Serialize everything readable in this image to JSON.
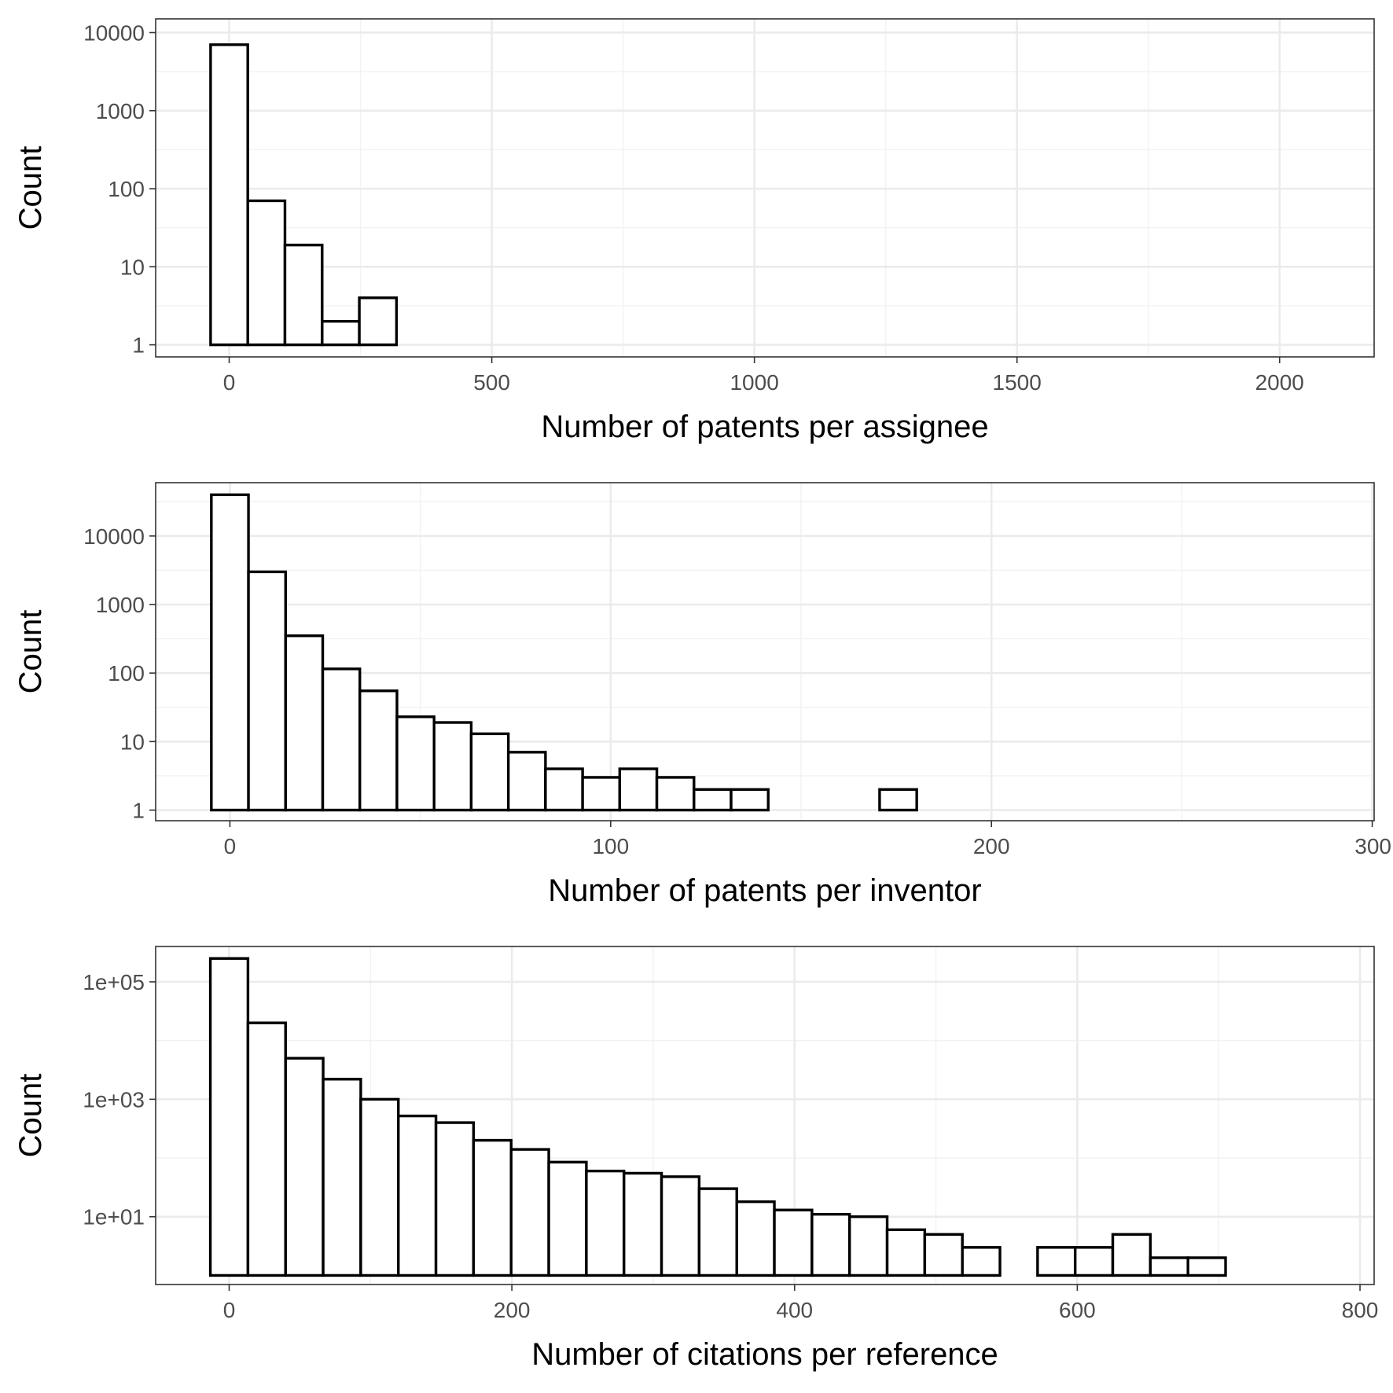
{
  "chart_data": [
    {
      "type": "bar",
      "y_scale": "log10",
      "grid": true,
      "xlabel": "Number of patents per assignee",
      "ylabel": "Count",
      "xlim": [
        -140,
        2180
      ],
      "ylim": [
        0.7,
        15000
      ],
      "x_ticks": [
        0,
        500,
        1000,
        1500,
        2000
      ],
      "x_tick_labels": [
        "0",
        "500",
        "1000",
        "1500",
        "2000"
      ],
      "y_ticks": [
        1,
        10,
        100,
        1000,
        10000
      ],
      "y_tick_labels": [
        "1",
        "10",
        "100",
        "1000",
        "10000"
      ],
      "bin_width": 70.8,
      "bins": [
        {
          "x": 0,
          "count": 7000
        },
        {
          "x": 70.8,
          "count": 70
        },
        {
          "x": 141.6,
          "count": 19
        },
        {
          "x": 212.4,
          "count": 2
        },
        {
          "x": 283.2,
          "count": 4
        },
        {
          "x": 354,
          "count": 1
        },
        {
          "x": 424.8,
          "count": 1
        },
        {
          "x": 920.4,
          "count": 1
        },
        {
          "x": 1628.4,
          "count": 1
        },
        {
          "x": 2053.2,
          "count": 1
        }
      ]
    },
    {
      "type": "bar",
      "y_scale": "log10",
      "grid": true,
      "xlabel": "Number of patents per inventor",
      "ylabel": "Count",
      "xlim": [
        -19.5,
        300.5
      ],
      "ylim": [
        0.7,
        60000
      ],
      "x_ticks": [
        0,
        100,
        200,
        300
      ],
      "x_tick_labels": [
        "0",
        "100",
        "200",
        "300"
      ],
      "y_ticks": [
        1,
        10,
        100,
        1000,
        10000
      ],
      "y_tick_labels": [
        "1",
        "10",
        "100",
        "1000",
        "10000"
      ],
      "bin_width": 9.75,
      "bins": [
        {
          "x": 0,
          "count": 40000
        },
        {
          "x": 9.75,
          "count": 3000
        },
        {
          "x": 19.5,
          "count": 350
        },
        {
          "x": 29.25,
          "count": 115
        },
        {
          "x": 39,
          "count": 55
        },
        {
          "x": 48.75,
          "count": 23
        },
        {
          "x": 58.5,
          "count": 19
        },
        {
          "x": 68.25,
          "count": 13
        },
        {
          "x": 78,
          "count": 7
        },
        {
          "x": 87.75,
          "count": 4
        },
        {
          "x": 97.5,
          "count": 3
        },
        {
          "x": 107.25,
          "count": 4
        },
        {
          "x": 117,
          "count": 3
        },
        {
          "x": 126.75,
          "count": 2
        },
        {
          "x": 136.5,
          "count": 2
        },
        {
          "x": 175.5,
          "count": 2
        },
        {
          "x": 204.75,
          "count": 1
        },
        {
          "x": 214.5,
          "count": 1
        },
        {
          "x": 282.75,
          "count": 1
        }
      ]
    },
    {
      "type": "bar",
      "y_scale": "log10",
      "grid": true,
      "xlabel": "Number of citations per reference",
      "ylabel": "Count",
      "xlim": [
        -52,
        810
      ],
      "ylim": [
        0.7,
        400000
      ],
      "x_ticks": [
        0,
        200,
        400,
        600,
        800
      ],
      "x_tick_labels": [
        "0",
        "200",
        "400",
        "600",
        "800"
      ],
      "y_ticks": [
        10,
        1000,
        100000
      ],
      "y_tick_labels": [
        "1e+01",
        "1e+03",
        "1e+05"
      ],
      "bin_width": 26.6,
      "bins": [
        {
          "x": 0,
          "count": 250000
        },
        {
          "x": 26.6,
          "count": 20000
        },
        {
          "x": 53.2,
          "count": 5000
        },
        {
          "x": 79.8,
          "count": 2200
        },
        {
          "x": 106.4,
          "count": 1000
        },
        {
          "x": 133,
          "count": 520
        },
        {
          "x": 159.6,
          "count": 400
        },
        {
          "x": 186.2,
          "count": 200
        },
        {
          "x": 212.8,
          "count": 140
        },
        {
          "x": 239.4,
          "count": 85
        },
        {
          "x": 266,
          "count": 60
        },
        {
          "x": 292.6,
          "count": 55
        },
        {
          "x": 319.2,
          "count": 48
        },
        {
          "x": 345.8,
          "count": 30
        },
        {
          "x": 372.4,
          "count": 18
        },
        {
          "x": 399,
          "count": 13
        },
        {
          "x": 425.6,
          "count": 11
        },
        {
          "x": 452.2,
          "count": 10
        },
        {
          "x": 478.8,
          "count": 6
        },
        {
          "x": 505.4,
          "count": 5
        },
        {
          "x": 532,
          "count": 3
        },
        {
          "x": 558.6,
          "count": 1
        },
        {
          "x": 585.2,
          "count": 3
        },
        {
          "x": 611.8,
          "count": 3
        },
        {
          "x": 638.4,
          "count": 5
        },
        {
          "x": 665,
          "count": 2
        },
        {
          "x": 691.6,
          "count": 2
        },
        {
          "x": 718.2,
          "count": 1
        },
        {
          "x": 771.4,
          "count": 1
        }
      ]
    }
  ]
}
